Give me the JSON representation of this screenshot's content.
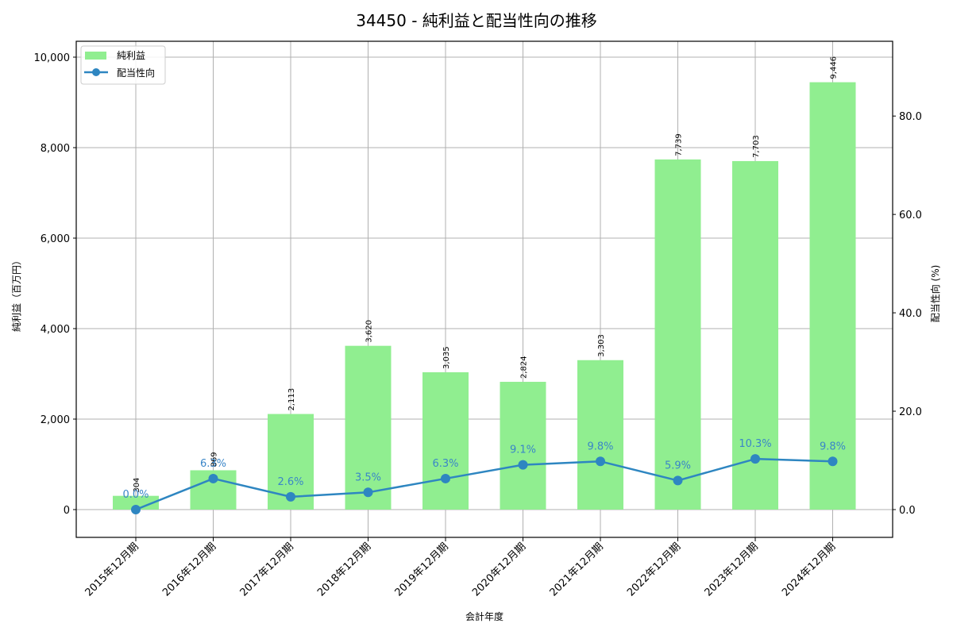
{
  "chart_data": {
    "type": "bar+line",
    "title": "34450 - 純利益と配当性向の推移",
    "xlabel": "会計年度",
    "ylabel_left": "純利益（百万円）",
    "ylabel_right": "配当性向 (%)",
    "categories": [
      "2015年12月期",
      "2016年12月期",
      "2017年12月期",
      "2018年12月期",
      "2019年12月期",
      "2020年12月期",
      "2021年12月期",
      "2022年12月期",
      "2023年12月期",
      "2024年12月期"
    ],
    "series": [
      {
        "name": "純利益",
        "type": "bar",
        "axis": "left",
        "color": "#90ee90",
        "values": [
          304,
          869,
          2113,
          3620,
          3035,
          2824,
          3303,
          7739,
          7703,
          9446
        ],
        "labels": [
          "304",
          "869",
          "2,113",
          "3,620",
          "3,035",
          "2,824",
          "3,303",
          "7,739",
          "7,703",
          "9,446"
        ]
      },
      {
        "name": "配当性向",
        "type": "line",
        "axis": "right",
        "color": "#2e86c1",
        "values": [
          0.0,
          6.3,
          2.6,
          3.5,
          6.3,
          9.1,
          9.8,
          5.9,
          10.3,
          9.8
        ],
        "labels": [
          "0.0%",
          "6.3%",
          "2.6%",
          "3.5%",
          "6.3%",
          "9.1%",
          "9.8%",
          "5.9%",
          "10.3%",
          "9.8%"
        ]
      }
    ],
    "ylim_left": [
      -614,
      10351
    ],
    "ylim_right": [
      -5.65,
      95.2
    ],
    "yticks_left": [
      0,
      2000,
      4000,
      6000,
      8000,
      10000
    ],
    "ytick_labels_left": [
      "0",
      "2,000",
      "4,000",
      "6,000",
      "8,000",
      "10,000"
    ],
    "yticks_right": [
      0,
      20,
      40,
      60,
      80
    ],
    "ytick_labels_right": [
      "0.0",
      "20.0",
      "40.0",
      "60.0",
      "80.0"
    ],
    "grid": true,
    "legend_position": "upper left"
  }
}
